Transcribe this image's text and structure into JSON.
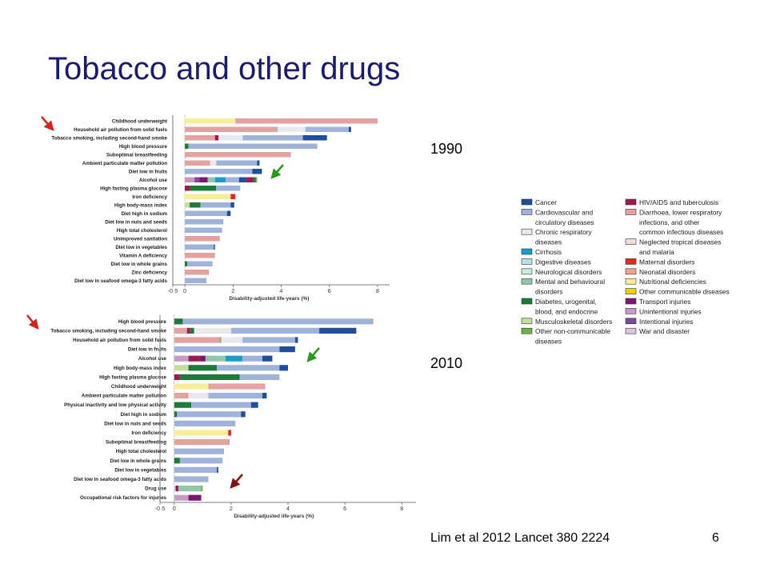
{
  "slide": {
    "title": "Tobacco and other drugs",
    "year_top": "1990",
    "year_bottom": "2010",
    "citation": "Lim et al 2012 Lancet 380 2224",
    "slide_number": "6"
  },
  "colors": {
    "Cancer": "#1f4e9c",
    "Cardiovascular": "#9fb2d9",
    "Chronic respiratory": "#e8e8ee",
    "Cirrhosis": "#1a9ec9",
    "Digestive": "#b9dfec",
    "Neurological": "#cfe7e0",
    "Mental": "#8fc7a8",
    "Diabetes": "#1e7a3a",
    "Musculoskeletal": "#c2de9a",
    "Other NCD": "#6db33f",
    "HIV/TB": "#9c1a4f",
    "Diarrhoea": "#e3a1a0",
    "NTD": "#f3dcd8",
    "Maternal": "#e3261e",
    "Neonatal": "#f0a58c",
    "Nutritional": "#f7ee9a",
    "Other communicable": "#f2d200",
    "Transport": "#7b1670",
    "Unintentional": "#c59ac5",
    "Intentional": "#7a4a9e",
    "War": "#d9c4e4"
  },
  "legend": {
    "left": [
      {
        "key": "Cancer",
        "lines": [
          "Cancer"
        ]
      },
      {
        "key": "Cardiovascular",
        "lines": [
          "Cardiovascular and",
          "circulatory diseases"
        ]
      },
      {
        "key": "Chronic respiratory",
        "lines": [
          "Chronic respiratory",
          "diseases"
        ]
      },
      {
        "key": "Cirrhosis",
        "lines": [
          "Cirrhosis"
        ]
      },
      {
        "key": "Digestive",
        "lines": [
          "Digestive diseases"
        ]
      },
      {
        "key": "Neurological",
        "lines": [
          "Neurological disorders"
        ]
      },
      {
        "key": "Mental",
        "lines": [
          "Mental and behavioural",
          "disorders"
        ]
      },
      {
        "key": "Diabetes",
        "lines": [
          "Diabetes, urogenital,",
          "blood, and endocrine"
        ]
      },
      {
        "key": "Musculoskeletal",
        "lines": [
          "Musculoskeletal disorders"
        ]
      },
      {
        "key": "Other NCD",
        "lines": [
          "Other non-communicable",
          "diseases"
        ]
      }
    ],
    "right": [
      {
        "key": "HIV/TB",
        "lines": [
          "HIV/AIDS and tuberculosis"
        ]
      },
      {
        "key": "Diarrhoea",
        "lines": [
          "Diarrhoea, lower respiratory",
          "infections, and other",
          "common infectious diseases"
        ]
      },
      {
        "key": "NTD",
        "lines": [
          "Neglected tropical diseases",
          "and malaria"
        ]
      },
      {
        "key": "Maternal",
        "lines": [
          "Maternal disorders"
        ]
      },
      {
        "key": "Neonatal",
        "lines": [
          "Neonatal disorders"
        ]
      },
      {
        "key": "Nutritional",
        "lines": [
          "Nutritional deficiencies"
        ]
      },
      {
        "key": "Other communicable",
        "lines": [
          "Other communicable diseases"
        ]
      },
      {
        "key": "Transport",
        "lines": [
          "Transport injuries"
        ]
      },
      {
        "key": "Unintentional",
        "lines": [
          "Unintentional injuries"
        ]
      },
      {
        "key": "Intentional",
        "lines": [
          "Intentional injuries"
        ]
      },
      {
        "key": "War",
        "lines": [
          "War and disaster"
        ]
      }
    ]
  },
  "chart_data": [
    {
      "type": "bar",
      "orientation": "horizontal-stacked",
      "xlabel": "Disability-adjusted life-years (%)",
      "xticks": [
        "-0·5",
        "0",
        "2",
        "4",
        "6",
        "8"
      ],
      "xlim": [
        -0.5,
        8.5
      ],
      "rows": [
        {
          "label": "Childhood underweight",
          "segments": [
            [
              "Nutritional",
              2.1
            ],
            [
              "Diarrhoea",
              5.9
            ]
          ]
        },
        {
          "label": "Household air pollution from solid fuels",
          "segments": [
            [
              "Diarrhoea",
              3.8
            ],
            [
              "Mental",
              0.05
            ],
            [
              "Chronic respiratory",
              1.15
            ],
            [
              "Cardiovascular",
              1.8
            ],
            [
              "Cancer",
              0.1
            ]
          ]
        },
        {
          "label": "Tobacco smoking, including second-hand smoke",
          "segments": [
            [
              "Diarrhoea",
              1.25
            ],
            [
              "HIV/TB",
              0.15
            ],
            [
              "Chronic respiratory",
              1.0
            ],
            [
              "Cardiovascular",
              2.5
            ],
            [
              "Cancer",
              1.0
            ]
          ]
        },
        {
          "label": "High blood pressure",
          "segments": [
            [
              "Diabetes",
              0.15
            ],
            [
              "Cardiovascular",
              5.35
            ]
          ]
        },
        {
          "label": "Suboptimal breastfeeding",
          "segments": [
            [
              "Diarrhoea",
              4.4
            ]
          ]
        },
        {
          "label": "Ambient particulate matter pollution",
          "segments": [
            [
              "Diarrhoea",
              1.05
            ],
            [
              "Chronic respiratory",
              0.25
            ],
            [
              "Cardiovascular",
              1.7
            ],
            [
              "Cancer",
              0.1
            ]
          ]
        },
        {
          "label": "Diet low in fruits",
          "segments": [
            [
              "Cardiovascular",
              2.8
            ],
            [
              "Cancer",
              0.4
            ]
          ]
        },
        {
          "label": "Alcohol use",
          "segments": [
            [
              "Unintentional",
              0.4
            ],
            [
              "Intentional",
              0.2
            ],
            [
              "Transport",
              0.35
            ],
            [
              "Mental",
              0.3
            ],
            [
              "Cirrhosis",
              0.45
            ],
            [
              "Cardiovascular",
              0.55
            ],
            [
              "Cancer",
              0.3
            ],
            [
              "HIV/TB",
              0.3
            ],
            [
              "Diabetes",
              0.1
            ],
            [
              "Other NCD",
              0.05
            ]
          ]
        },
        {
          "label": "High fasting plasma glucose",
          "segments": [
            [
              "HIV/TB",
              0.2
            ],
            [
              "Diabetes",
              1.1
            ],
            [
              "Cardiovascular",
              1.0
            ]
          ]
        },
        {
          "label": "Iron deficiency",
          "segments": [
            [
              "Nutritional",
              1.9
            ],
            [
              "Maternal",
              0.2
            ]
          ]
        },
        {
          "label": "High body-mass index",
          "segments": [
            [
              "Musculoskeletal",
              0.2
            ],
            [
              "Diabetes",
              0.45
            ],
            [
              "Cardiovascular",
              1.25
            ],
            [
              "Cancer",
              0.15
            ]
          ]
        },
        {
          "label": "Diet high in sodium",
          "segments": [
            [
              "Cardiovascular",
              1.75
            ],
            [
              "Cancer",
              0.15
            ]
          ]
        },
        {
          "label": "Diet low in nuts and seeds",
          "segments": [
            [
              "Cardiovascular",
              1.6
            ]
          ]
        },
        {
          "label": "High total cholesterol",
          "segments": [
            [
              "Cardiovascular",
              1.55
            ]
          ]
        },
        {
          "label": "Unimproved sanitation",
          "segments": [
            [
              "Diarrhoea",
              1.45
            ]
          ]
        },
        {
          "label": "Diet low in vegetables",
          "segments": [
            [
              "Cardiovascular",
              1.2
            ],
            [
              "Cancer",
              0.05
            ]
          ]
        },
        {
          "label": "Vitamin A deficiency",
          "segments": [
            [
              "Diarrhoea",
              1.25
            ]
          ]
        },
        {
          "label": "Diet low in whole grains",
          "segments": [
            [
              "Diabetes",
              0.1
            ],
            [
              "Cardiovascular",
              1.05
            ]
          ]
        },
        {
          "label": "Zinc deficiency",
          "segments": [
            [
              "Diarrhoea",
              1.0
            ]
          ]
        },
        {
          "label": "Diet low in seafood omega-3 fatty acids",
          "segments": [
            [
              "Cardiovascular",
              0.9
            ]
          ]
        }
      ]
    },
    {
      "type": "bar",
      "orientation": "horizontal-stacked",
      "xlabel": "Disability-adjusted life-years (%)",
      "xticks": [
        "-0·5",
        "0",
        "2",
        "4",
        "6",
        "8"
      ],
      "xlim": [
        -0.5,
        8.5
      ],
      "rows": [
        {
          "label": "High blood pressure",
          "segments": [
            [
              "Diabetes",
              0.3
            ],
            [
              "Cardiovascular",
              6.7
            ]
          ]
        },
        {
          "label": "Tobacco smoking, including second-hand smoke",
          "segments": [
            [
              "Diarrhoea",
              0.45
            ],
            [
              "HIV/TB",
              0.1
            ],
            [
              "Diabetes",
              0.15
            ],
            [
              "Chronic respiratory",
              1.3
            ],
            [
              "Cardiovascular",
              3.1
            ],
            [
              "Cancer",
              1.3
            ]
          ]
        },
        {
          "label": "Household air pollution from solid fuels",
          "segments": [
            [
              "Diarrhoea",
              1.6
            ],
            [
              "Other NCD",
              0.05
            ],
            [
              "Chronic respiratory",
              0.75
            ],
            [
              "Cardiovascular",
              1.85
            ],
            [
              "Cancer",
              0.1
            ]
          ]
        },
        {
          "label": "Diet low in fruits",
          "segments": [
            [
              "Cardiovascular",
              3.7
            ],
            [
              "Cancer",
              0.55
            ]
          ]
        },
        {
          "label": "Alcohol use",
          "segments": [
            [
              "Unintentional",
              0.5
            ],
            [
              "HIV/TB",
              0.4
            ],
            [
              "Transport",
              0.2
            ],
            [
              "Mental",
              0.7
            ],
            [
              "Cirrhosis",
              0.6
            ],
            [
              "Cardiovascular",
              0.7
            ],
            [
              "Cancer",
              0.35
            ]
          ]
        },
        {
          "label": "High body-mass index",
          "segments": [
            [
              "Musculoskeletal",
              0.5
            ],
            [
              "Diabetes",
              1.0
            ],
            [
              "Cardiovascular",
              2.2
            ],
            [
              "Cancer",
              0.3
            ]
          ]
        },
        {
          "label": "High fasting plasma glucose",
          "segments": [
            [
              "HIV/TB",
              0.2
            ],
            [
              "Diabetes",
              2.1
            ],
            [
              "Cardiovascular",
              1.4
            ]
          ]
        },
        {
          "label": "Childhood underweight",
          "segments": [
            [
              "Nutritional",
              1.2
            ],
            [
              "Diarrhoea",
              2.0
            ]
          ]
        },
        {
          "label": "Ambient particulate matter pollution",
          "segments": [
            [
              "Diarrhoea",
              0.5
            ],
            [
              "Chronic respiratory",
              0.7
            ],
            [
              "Cardiovascular",
              1.9
            ],
            [
              "Cancer",
              0.15
            ]
          ]
        },
        {
          "label": "Physical inactivity and low physical activity",
          "segments": [
            [
              "Diabetes",
              0.6
            ],
            [
              "Cardiovascular",
              2.1
            ],
            [
              "Cancer",
              0.25
            ]
          ]
        },
        {
          "label": "Diet high in sodium",
          "segments": [
            [
              "Diabetes",
              0.1
            ],
            [
              "Cardiovascular",
              2.25
            ],
            [
              "Cancer",
              0.15
            ]
          ]
        },
        {
          "label": "Diet low in nuts and seeds",
          "segments": [
            [
              "Cardiovascular",
              2.15
            ]
          ]
        },
        {
          "label": "Iron deficiency",
          "segments": [
            [
              "Nutritional",
              1.9
            ],
            [
              "Maternal",
              0.1
            ]
          ]
        },
        {
          "label": "Suboptimal breastfeeding",
          "segments": [
            [
              "Diarrhoea",
              1.95
            ]
          ]
        },
        {
          "label": "High total cholesterol",
          "segments": [
            [
              "Cardiovascular",
              1.75
            ]
          ]
        },
        {
          "label": "Diet low in whole grains",
          "segments": [
            [
              "Diabetes",
              0.2
            ],
            [
              "Cardiovascular",
              1.5
            ]
          ]
        },
        {
          "label": "Diet low in vegetables",
          "segments": [
            [
              "Cardiovascular",
              1.5
            ],
            [
              "Cancer",
              0.05
            ]
          ]
        },
        {
          "label": "Diet low in seafood omega-3 fatty acids",
          "segments": [
            [
              "Cardiovascular",
              1.2
            ]
          ]
        },
        {
          "label": "Drug use",
          "segments": [
            [
              "War",
              0.05
            ],
            [
              "HIV/TB",
              0.1
            ],
            [
              "Mental",
              0.8
            ],
            [
              "Other NCD",
              0.05
            ]
          ]
        },
        {
          "label": "Occupational risk factors for injuries",
          "segments": [
            [
              "Unintentional",
              0.5
            ],
            [
              "Transport",
              0.45
            ]
          ]
        }
      ]
    }
  ]
}
